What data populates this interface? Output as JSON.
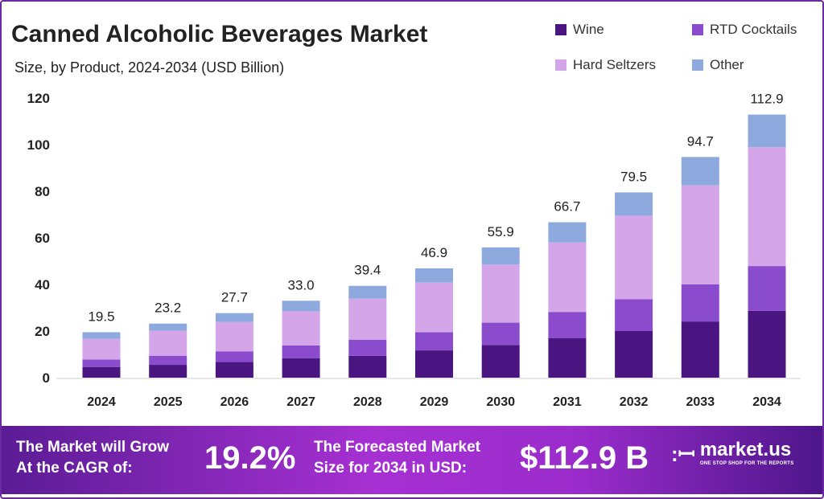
{
  "chart_data": {
    "type": "bar",
    "stacked": true,
    "title": "Canned Alcoholic Beverages Market",
    "subtitle": "Size, by Product, 2024-2034 (USD Billion)",
    "xlabel": "",
    "ylabel": "",
    "ylim": [
      0,
      120
    ],
    "yticks": [
      0,
      20,
      40,
      60,
      80,
      100,
      120
    ],
    "grid": false,
    "legend_position": "top-right",
    "categories": [
      "2024",
      "2025",
      "2026",
      "2027",
      "2028",
      "2029",
      "2030",
      "2031",
      "2032",
      "2033",
      "2034"
    ],
    "totals": [
      "19.5",
      "23.2",
      "27.7",
      "33.0",
      "39.4",
      "46.9",
      "55.9",
      "66.7",
      "79.5",
      "94.7",
      "112.9"
    ],
    "series": [
      {
        "name": "Wine",
        "color": "#4a1580",
        "values": [
          4.6,
          5.5,
          6.7,
          8.3,
          9.4,
          11.7,
          14.0,
          16.9,
          20.0,
          24.1,
          28.7
        ]
      },
      {
        "name": "RTD Cocktails",
        "color": "#8a4ccc",
        "values": [
          3.2,
          3.9,
          4.6,
          5.5,
          6.9,
          7.8,
          9.6,
          11.3,
          13.7,
          15.9,
          19.2
        ]
      },
      {
        "name": "Hard Seltzers",
        "color": "#d4a5e8",
        "values": [
          8.9,
          10.7,
          12.6,
          14.7,
          17.6,
          21.3,
          24.9,
          29.8,
          35.8,
          42.5,
          51.0
        ]
      },
      {
        "name": "Other",
        "color": "#8da9dd",
        "values": [
          2.8,
          3.1,
          3.8,
          4.5,
          5.5,
          6.1,
          7.4,
          8.7,
          10.0,
          12.2,
          14.0
        ]
      }
    ]
  },
  "banner": {
    "cagr_text_1": "The Market will Grow",
    "cagr_text_2": "At the CAGR of:",
    "cagr_value": "19.2%",
    "forecast_text_1": "The Forecasted Market",
    "forecast_text_2": "Size for 2034 in USD:",
    "forecast_value": "$112.9 B",
    "logo_name": "market.us",
    "logo_tagline": "ONE STOP SHOP FOR THE REPORTS"
  }
}
